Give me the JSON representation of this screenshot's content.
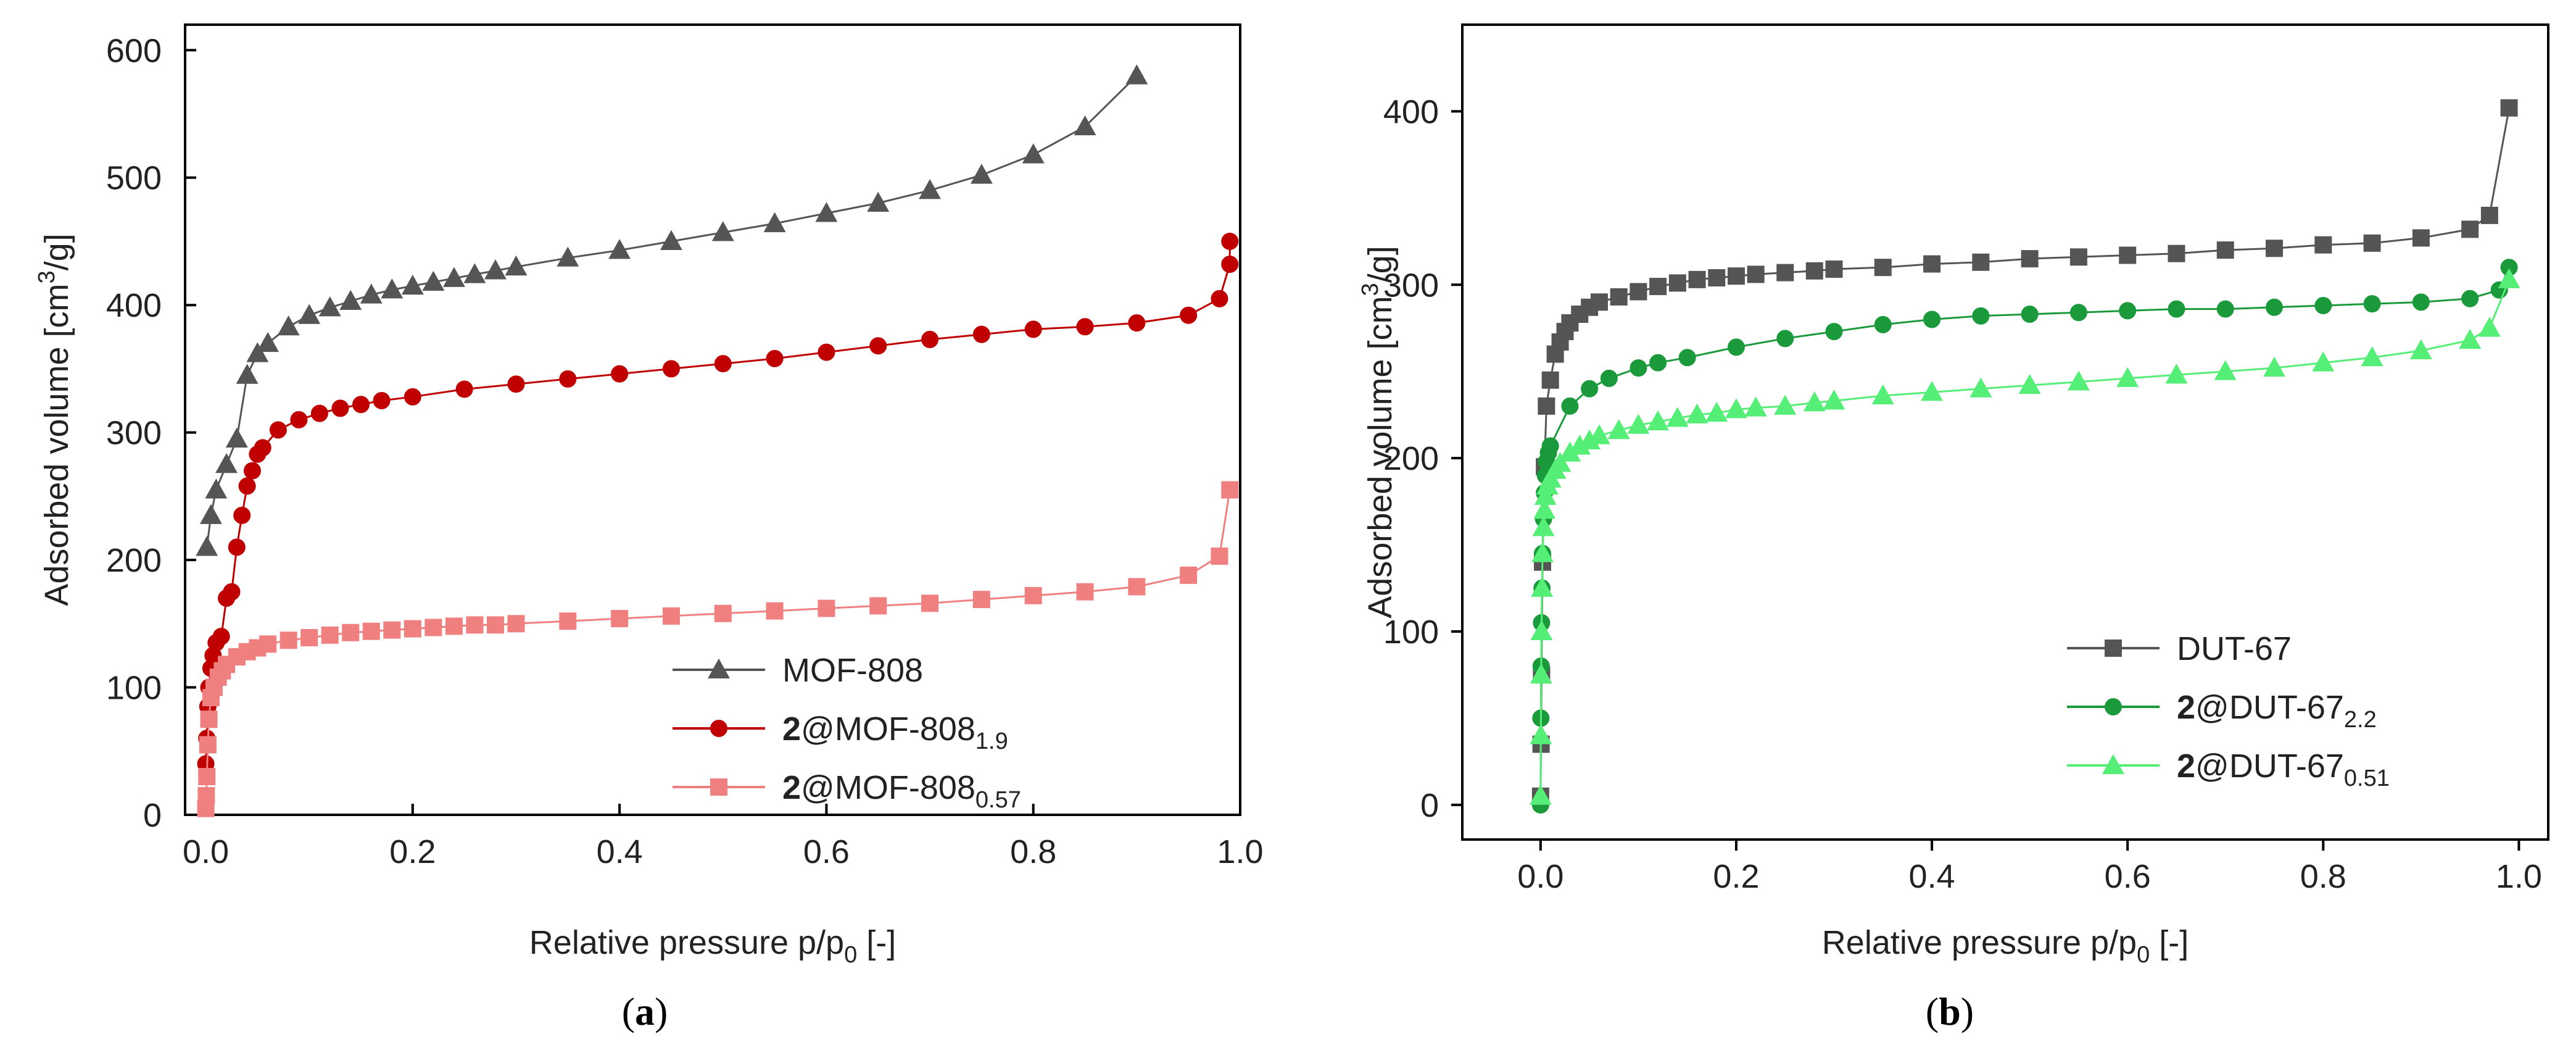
{
  "chart_data": [
    {
      "type": "line",
      "panel_label": "(a)",
      "panel_letter": "a",
      "xlabel": "Relative pressure p/p",
      "xlabel_sub": "0",
      "xlabel_suffix": " [-]",
      "ylabel": "Adsorbed volume [cm",
      "ylabel_sup": "3",
      "ylabel_suffix": "/g]",
      "xlim": [
        -0.02,
        1.0
      ],
      "ylim": [
        0,
        620
      ],
      "xticks": [
        0.0,
        0.2,
        0.4,
        0.6,
        0.8,
        1.0
      ],
      "xtick_labels": [
        "0.0",
        "0.2",
        "0.4",
        "0.6",
        "0.8",
        "1.0"
      ],
      "yticks": [
        0,
        100,
        200,
        300,
        400,
        500,
        600
      ],
      "ytick_labels": [
        "0",
        "100",
        "200",
        "300",
        "400",
        "500",
        "600"
      ],
      "legend_position": "bottom-right",
      "series": [
        {
          "name": "MOF-808",
          "name_prefix": "",
          "name_main": "MOF-808",
          "name_sub": "",
          "color": "#555555",
          "marker": "triangle",
          "x": [
            0.001,
            0.005,
            0.01,
            0.02,
            0.03,
            0.04,
            0.05,
            0.06,
            0.08,
            0.1,
            0.12,
            0.14,
            0.16,
            0.18,
            0.2,
            0.22,
            0.24,
            0.26,
            0.28,
            0.3,
            0.35,
            0.4,
            0.45,
            0.5,
            0.55,
            0.6,
            0.65,
            0.7,
            0.75,
            0.8,
            0.85,
            0.9
          ],
          "y": [
            210,
            235,
            255,
            275,
            295,
            345,
            362,
            370,
            383,
            392,
            398,
            403,
            408,
            412,
            415,
            418,
            421,
            424,
            427,
            430,
            437,
            443,
            450,
            457,
            464,
            472,
            480,
            490,
            502,
            518,
            540,
            580
          ]
        },
        {
          "name": "2@MOF-8081.9",
          "name_prefix": "2",
          "name_main": "@MOF-808",
          "name_sub": "1.9",
          "color": "#c00000",
          "marker": "circle",
          "x": [
            0.0,
            0.001,
            0.002,
            0.003,
            0.005,
            0.007,
            0.01,
            0.015,
            0.02,
            0.025,
            0.03,
            0.035,
            0.04,
            0.045,
            0.05,
            0.055,
            0.07,
            0.09,
            0.11,
            0.13,
            0.15,
            0.17,
            0.2,
            0.25,
            0.3,
            0.35,
            0.4,
            0.45,
            0.5,
            0.55,
            0.6,
            0.65,
            0.7,
            0.75,
            0.8,
            0.85,
            0.9,
            0.95,
            0.98,
            0.99,
            0.99
          ],
          "y": [
            40,
            60,
            85,
            100,
            115,
            125,
            135,
            140,
            170,
            175,
            210,
            235,
            258,
            270,
            283,
            288,
            302,
            310,
            315,
            319,
            322,
            325,
            328,
            334,
            338,
            342,
            346,
            350,
            354,
            358,
            363,
            368,
            373,
            377,
            381,
            383,
            386,
            392,
            405,
            432,
            450
          ]
        },
        {
          "name": "2@MOF-8080.57",
          "name_prefix": "2",
          "name_main": "@MOF-808",
          "name_sub": "0.57",
          "color": "#f08080",
          "marker": "square",
          "x": [
            0.0,
            0.0005,
            0.001,
            0.002,
            0.003,
            0.005,
            0.008,
            0.012,
            0.016,
            0.02,
            0.03,
            0.04,
            0.05,
            0.06,
            0.08,
            0.1,
            0.12,
            0.14,
            0.16,
            0.18,
            0.2,
            0.22,
            0.24,
            0.26,
            0.28,
            0.3,
            0.35,
            0.4,
            0.45,
            0.5,
            0.55,
            0.6,
            0.65,
            0.7,
            0.75,
            0.8,
            0.85,
            0.9,
            0.95,
            0.98,
            0.99
          ],
          "y": [
            5,
            15,
            30,
            55,
            75,
            92,
            100,
            108,
            113,
            118,
            124,
            128,
            131,
            134,
            137,
            139,
            141,
            143,
            144,
            145,
            146,
            147,
            148,
            149,
            149,
            150,
            152,
            154,
            156,
            158,
            160,
            162,
            164,
            166,
            169,
            172,
            175,
            179,
            188,
            203,
            255
          ]
        }
      ]
    },
    {
      "type": "line",
      "panel_label": "(b)",
      "panel_letter": "b",
      "xlabel": "Relative pressure p/p",
      "xlabel_sub": "0",
      "xlabel_suffix": " [-]",
      "ylabel": "Adsorbed volume [cm",
      "ylabel_sup": "3",
      "ylabel_suffix": "/g]",
      "xlim": [
        -0.08,
        1.03
      ],
      "ylim": [
        -20,
        450
      ],
      "xticks": [
        0.0,
        0.2,
        0.4,
        0.6,
        0.8,
        1.0
      ],
      "xtick_labels": [
        "0.0",
        "0.2",
        "0.4",
        "0.6",
        "0.8",
        "1.0"
      ],
      "yticks": [
        0,
        100,
        200,
        300,
        400
      ],
      "ytick_labels": [
        "0",
        "100",
        "200",
        "300",
        "400"
      ],
      "legend_position": "bottom-right",
      "series": [
        {
          "name": "DUT-67",
          "name_prefix": "",
          "name_main": "DUT-67",
          "name_sub": "",
          "color": "#555555",
          "marker": "square",
          "x": [
            0.0,
            0.0005,
            0.001,
            0.002,
            0.004,
            0.006,
            0.01,
            0.015,
            0.02,
            0.025,
            0.03,
            0.04,
            0.05,
            0.06,
            0.08,
            0.1,
            0.12,
            0.14,
            0.16,
            0.18,
            0.2,
            0.22,
            0.25,
            0.28,
            0.3,
            0.35,
            0.4,
            0.45,
            0.5,
            0.55,
            0.6,
            0.65,
            0.7,
            0.75,
            0.8,
            0.85,
            0.9,
            0.95,
            0.97,
            0.99
          ],
          "y": [
            5,
            35,
            75,
            140,
            195,
            230,
            245,
            260,
            267,
            273,
            278,
            283,
            287,
            290,
            293,
            296,
            299,
            301,
            303,
            304,
            305,
            306,
            307,
            308,
            309,
            310,
            312,
            313,
            315,
            316,
            317,
            318,
            320,
            321,
            323,
            324,
            327,
            332,
            340,
            402
          ]
        },
        {
          "name": "2@DUT-672.2",
          "name_prefix": "2",
          "name_main": "@DUT-67",
          "name_sub": "2.2",
          "color": "#1a9a3a",
          "marker": "circle",
          "x": [
            0.0,
            0.0003,
            0.0006,
            0.001,
            0.0015,
            0.002,
            0.003,
            0.004,
            0.005,
            0.006,
            0.008,
            0.01,
            0.03,
            0.05,
            0.07,
            0.1,
            0.12,
            0.15,
            0.2,
            0.25,
            0.3,
            0.35,
            0.4,
            0.45,
            0.5,
            0.55,
            0.6,
            0.65,
            0.7,
            0.75,
            0.8,
            0.85,
            0.9,
            0.95,
            0.98,
            0.99
          ],
          "y": [
            0,
            50,
            80,
            105,
            125,
            145,
            165,
            180,
            190,
            198,
            203,
            207,
            230,
            240,
            246,
            252,
            255,
            258,
            264,
            269,
            273,
            277,
            280,
            282,
            283,
            284,
            285,
            286,
            286,
            287,
            288,
            289,
            290,
            292,
            297,
            310
          ]
        },
        {
          "name": "2@DUT-670.51",
          "name_prefix": "2",
          "name_main": "@DUT-67",
          "name_sub": "0.51",
          "color": "#55ee77",
          "marker": "triangle",
          "x": [
            0.0,
            0.0003,
            0.0006,
            0.001,
            0.0015,
            0.002,
            0.003,
            0.004,
            0.005,
            0.007,
            0.01,
            0.015,
            0.02,
            0.03,
            0.04,
            0.05,
            0.06,
            0.08,
            0.1,
            0.12,
            0.14,
            0.16,
            0.18,
            0.2,
            0.22,
            0.25,
            0.28,
            0.3,
            0.35,
            0.4,
            0.45,
            0.5,
            0.55,
            0.6,
            0.65,
            0.7,
            0.75,
            0.8,
            0.85,
            0.9,
            0.95,
            0.97,
            0.99
          ],
          "y": [
            5,
            40,
            75,
            100,
            125,
            145,
            160,
            170,
            178,
            184,
            188,
            193,
            197,
            203,
            207,
            210,
            213,
            216,
            219,
            221,
            223,
            225,
            226,
            228,
            229,
            230,
            232,
            233,
            236,
            238,
            240,
            242,
            244,
            246,
            248,
            250,
            252,
            255,
            258,
            262,
            268,
            275,
            303
          ]
        }
      ]
    }
  ]
}
